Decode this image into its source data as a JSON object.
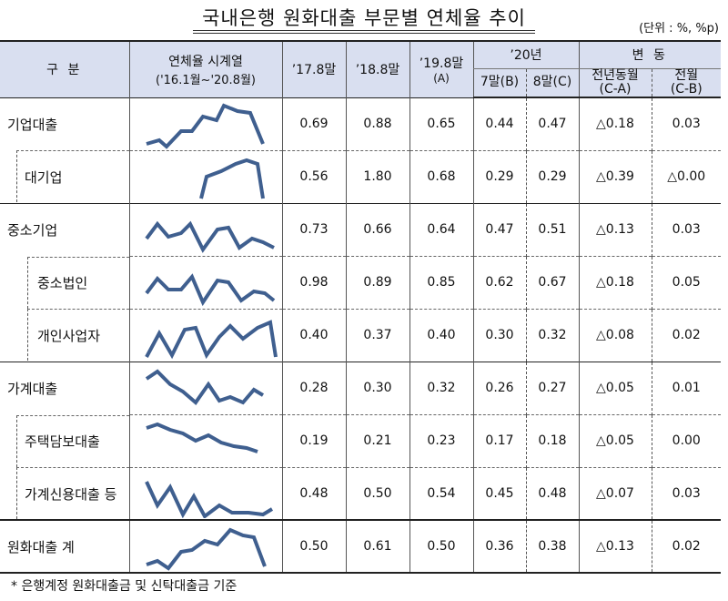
{
  "title": "국내은행 원화대출 부문별 연체율 추이",
  "unit": "(단위 : %, %p)",
  "header": {
    "category": "구  분",
    "timeseries_line1": "연체율 시계열",
    "timeseries_line2": "('16.1월~'20.8월)",
    "col_1708": "’17.8말",
    "col_1808": "’18.8말",
    "col_1908_line1": "’19.8말",
    "col_1908_line2": "(A)",
    "col_20": "’20년",
    "col_2007": "7말(B)",
    "col_2008": "8말(C)",
    "change": "변  동",
    "change_yoy_line1": "전년동월",
    "change_yoy_line2": "(C-A)",
    "change_mom_line1": "전월",
    "change_mom_line2": "(C-B)"
  },
  "rows": [
    {
      "label": "기업대출",
      "v1708": "0.69",
      "v1808": "0.88",
      "v1908": "0.65",
      "v2007": "0.44",
      "v2008": "0.47",
      "yoy": "△0.18",
      "mom": "0.03"
    },
    {
      "label": "대기업",
      "v1708": "0.56",
      "v1808": "1.80",
      "v1908": "0.68",
      "v2007": "0.29",
      "v2008": "0.29",
      "yoy": "△0.39",
      "mom": "△0.00"
    },
    {
      "label": "중소기업",
      "v1708": "0.73",
      "v1808": "0.66",
      "v1908": "0.64",
      "v2007": "0.47",
      "v2008": "0.51",
      "yoy": "△0.13",
      "mom": "0.03"
    },
    {
      "label": "중소법인",
      "v1708": "0.98",
      "v1808": "0.89",
      "v1908": "0.85",
      "v2007": "0.62",
      "v2008": "0.67",
      "yoy": "△0.18",
      "mom": "0.05"
    },
    {
      "label": "개인사업자",
      "v1708": "0.40",
      "v1808": "0.37",
      "v1908": "0.40",
      "v2007": "0.30",
      "v2008": "0.32",
      "yoy": "△0.08",
      "mom": "0.02"
    },
    {
      "label": "가계대출",
      "v1708": "0.28",
      "v1808": "0.30",
      "v1908": "0.32",
      "v2007": "0.26",
      "v2008": "0.27",
      "yoy": "△0.05",
      "mom": "0.01"
    },
    {
      "label": "주택담보대출",
      "v1708": "0.19",
      "v1808": "0.21",
      "v1908": "0.23",
      "v2007": "0.17",
      "v2008": "0.18",
      "yoy": "△0.05",
      "mom": "0.00"
    },
    {
      "label": "가계신용대출 등",
      "v1708": "0.48",
      "v1808": "0.50",
      "v1908": "0.54",
      "v2007": "0.45",
      "v2008": "0.48",
      "yoy": "△0.07",
      "mom": "0.03"
    },
    {
      "label": "원화대출 계",
      "v1708": "0.50",
      "v1808": "0.61",
      "v1908": "0.50",
      "v2007": "0.36",
      "v2008": "0.38",
      "yoy": "△0.13",
      "mom": "0.02"
    }
  ],
  "sparkline_color": "#3f5f8f",
  "footnote": "* 은행계정 원화대출금 및 신탁대출금 기준"
}
